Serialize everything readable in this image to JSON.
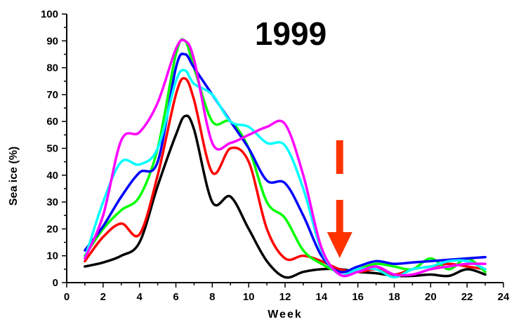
{
  "chart_data": {
    "type": "line",
    "title": "1999",
    "xlabel": "Week",
    "ylabel": "Sea ice (%)",
    "xlim": [
      0,
      24
    ],
    "ylim": [
      0,
      100
    ],
    "xticks": [
      "0",
      "2",
      "4",
      "6",
      "8",
      "10",
      "12",
      "14",
      "16",
      "18",
      "20",
      "22",
      "24"
    ],
    "yticks": [
      "0",
      "10",
      "20",
      "30",
      "40",
      "50",
      "60",
      "70",
      "80",
      "90",
      "100"
    ],
    "grid": false,
    "legend": "none",
    "series": [
      {
        "color": "#000000",
        "x": [
          1,
          2,
          3,
          4,
          5,
          6,
          6.5,
          7,
          8,
          9,
          10,
          11,
          12,
          13,
          14,
          15,
          16,
          17,
          18,
          19,
          20,
          21,
          22,
          23
        ],
        "y": [
          6,
          7.5,
          10,
          15,
          36,
          55,
          62,
          57,
          30,
          32,
          20,
          8,
          2,
          4,
          5,
          5,
          4,
          3.5,
          2.5,
          2.5,
          3,
          2.5,
          5,
          3
        ]
      },
      {
        "color": "#ff0000",
        "x": [
          1,
          2,
          3,
          4,
          5,
          6,
          6.5,
          7,
          8,
          9,
          10,
          11,
          12,
          13,
          14,
          15,
          16,
          17,
          18,
          19,
          20,
          21,
          22,
          23
        ],
        "y": [
          8,
          17,
          22,
          18,
          40,
          70,
          76,
          68,
          41,
          50,
          45,
          20,
          9,
          10,
          8,
          5,
          4,
          5,
          3,
          5,
          6,
          7,
          6,
          5
        ]
      },
      {
        "color": "#00ff00",
        "x": [
          1,
          2,
          3,
          4,
          5,
          6,
          6.5,
          7,
          8,
          9,
          10,
          11,
          12,
          13,
          14,
          15,
          16,
          17,
          18,
          19,
          20,
          21,
          22,
          23
        ],
        "y": [
          10,
          20,
          27,
          32,
          50,
          85,
          90,
          80,
          60,
          60,
          50,
          30,
          24,
          12,
          7,
          4,
          5,
          7,
          6,
          5,
          9,
          5,
          9,
          4
        ]
      },
      {
        "color": "#0000ff",
        "x": [
          1,
          2,
          3,
          4,
          5,
          6,
          6.5,
          7,
          8,
          9,
          10,
          11,
          12,
          13,
          14,
          15,
          16,
          17,
          18,
          19,
          20,
          21,
          22,
          23
        ],
        "y": [
          12,
          21,
          32,
          41,
          45,
          80,
          85,
          80,
          70,
          60,
          50,
          38,
          37,
          25,
          10,
          4,
          6,
          8,
          7,
          7.5,
          8,
          8.5,
          9,
          9.5
        ]
      },
      {
        "color": "#00ffff",
        "x": [
          1,
          2,
          3,
          4,
          5,
          6,
          6.5,
          7,
          8,
          9,
          10,
          11,
          12,
          13,
          14,
          15,
          16,
          17,
          18,
          19,
          20,
          21,
          22,
          23
        ],
        "y": [
          9,
          30,
          45,
          44,
          50,
          75,
          79,
          74,
          70,
          60,
          58,
          52,
          51,
          35,
          12,
          3,
          5,
          5,
          2,
          5,
          6,
          8,
          8,
          5
        ]
      },
      {
        "color": "#ff00ff",
        "x": [
          1,
          2,
          3,
          4,
          5,
          6,
          6.5,
          7,
          8,
          9,
          10,
          11,
          12,
          13,
          14,
          15,
          16,
          17,
          18,
          19,
          20,
          21,
          22,
          23
        ],
        "y": [
          9,
          25,
          53,
          56,
          67,
          87,
          90,
          83,
          52,
          52,
          55,
          58,
          59,
          40,
          13,
          3,
          4,
          6,
          3,
          3,
          5,
          6,
          7,
          7
        ]
      }
    ],
    "annotation": {
      "shape": "red dashed downward arrow",
      "color": "#ff3300",
      "x": 15
    }
  }
}
